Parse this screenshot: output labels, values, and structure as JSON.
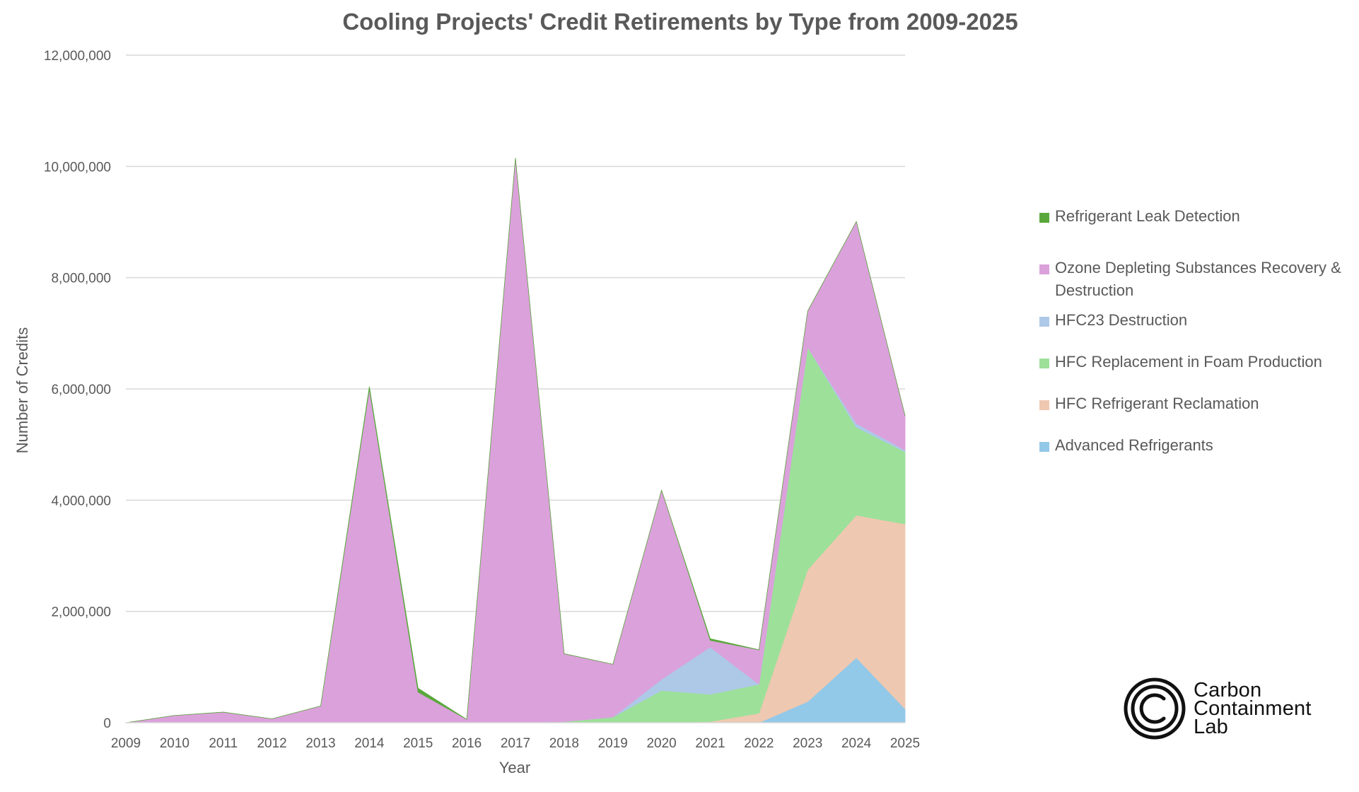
{
  "chart_data": {
    "type": "area",
    "stacked": true,
    "title": "Cooling Projects' Credit Retirements by Type from 2009-2025",
    "xlabel": "Year",
    "ylabel": "Number of Credits",
    "ylim": [
      0,
      12000000
    ],
    "y_ticks": [
      0,
      2000000,
      4000000,
      6000000,
      8000000,
      10000000,
      12000000
    ],
    "y_tick_labels": [
      "0",
      "2,000,000",
      "4,000,000",
      "6,000,000",
      "8,000,000",
      "10,000,000",
      "12,000,000"
    ],
    "grid": true,
    "legend_position": "right",
    "categories": [
      "2009",
      "2010",
      "2011",
      "2012",
      "2013",
      "2014",
      "2015",
      "2016",
      "2017",
      "2018",
      "2019",
      "2020",
      "2021",
      "2022",
      "2023",
      "2024",
      "2025"
    ],
    "series": [
      {
        "name": "Advanced Refrigerants",
        "color": "#92c8e8",
        "values": [
          0,
          0,
          0,
          0,
          0,
          0,
          0,
          0,
          0,
          0,
          0,
          0,
          0,
          0,
          380000,
          1170000,
          250000
        ]
      },
      {
        "name": "HFC Refrigerant Reclamation",
        "color": "#eec8b0",
        "values": [
          0,
          0,
          0,
          0,
          0,
          0,
          0,
          0,
          0,
          0,
          0,
          0,
          20000,
          170000,
          2370000,
          2560000,
          3320000
        ]
      },
      {
        "name": "HFC Replacement in Foam Production",
        "color": "#9de09a",
        "values": [
          0,
          0,
          0,
          0,
          0,
          0,
          0,
          0,
          0,
          20000,
          100000,
          580000,
          490000,
          520000,
          4000000,
          1580000,
          1300000
        ]
      },
      {
        "name": "HFC23 Destruction",
        "color": "#aec8e8",
        "values": [
          0,
          0,
          0,
          0,
          0,
          0,
          0,
          0,
          0,
          0,
          0,
          200000,
          850000,
          0,
          0,
          70000,
          30000
        ]
      },
      {
        "name": "Ozone Depleting Substances Recovery & Destruction",
        "color": "#dba1db",
        "values": [
          0,
          130000,
          190000,
          70000,
          300000,
          6000000,
          550000,
          60000,
          10150000,
          1220000,
          950000,
          3400000,
          120000,
          620000,
          650000,
          3630000,
          620000
        ]
      },
      {
        "name": "Refrigerant Leak Detection",
        "color": "#5aa83c",
        "values": [
          0,
          0,
          0,
          0,
          0,
          40000,
          70000,
          0,
          0,
          0,
          0,
          0,
          30000,
          0,
          0,
          0,
          0
        ]
      }
    ],
    "legend_order": [
      "Refrigerant Leak Detection",
      "Ozone Depleting Substances Recovery & Destruction",
      "HFC23 Destruction",
      "HFC Replacement in Foam Production",
      "HFC Refrigerant Reclamation",
      "Advanced Refrigerants"
    ]
  },
  "logo": {
    "line1": "Carbon",
    "line2": "Containment",
    "line3": "Lab"
  }
}
